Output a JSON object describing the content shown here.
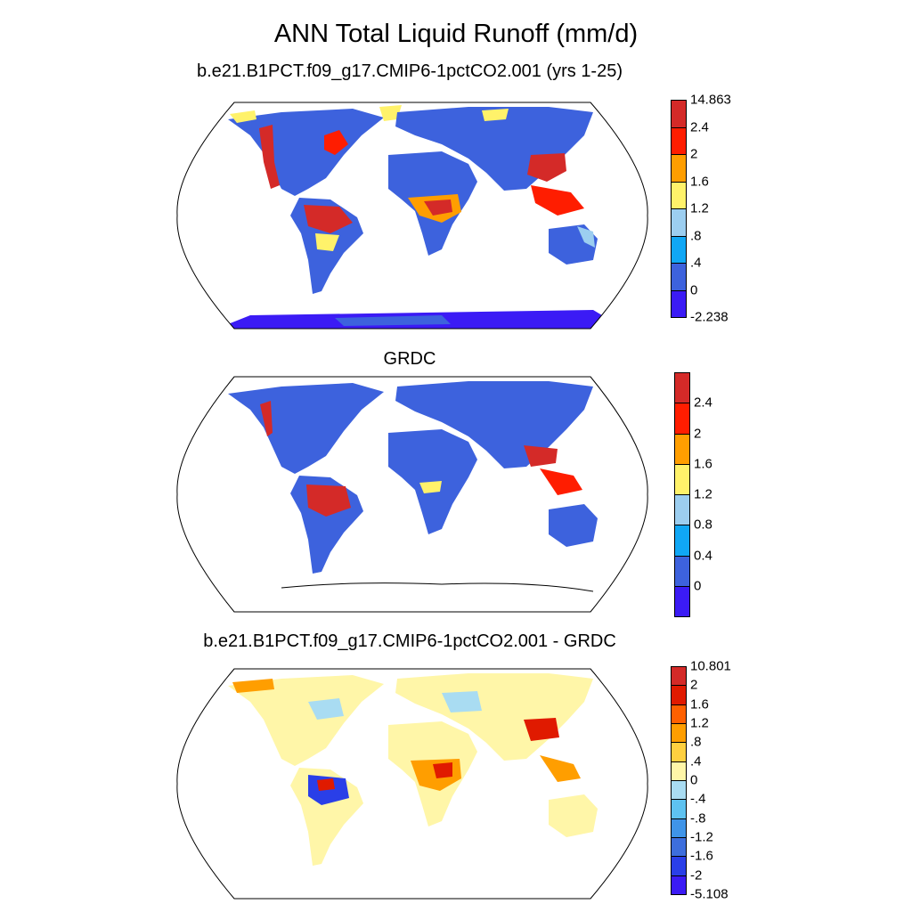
{
  "title": "ANN Total Liquid Runoff (mm/d)",
  "panels": [
    {
      "title": "b.e21.B1PCT.f09_g17.CMIP6-1pctCO2.001 (yrs 1-25)",
      "colorbar": {
        "colors": [
          "#3b1bf5",
          "#3d62dd",
          "#10a7f5",
          "#9ccef0",
          "#fff26a",
          "#ff9e00",
          "#ff1d00",
          "#d42a28"
        ],
        "labels": [
          "-2.238",
          "0",
          ".4",
          ".8",
          "1.2",
          "1.6",
          "2",
          "2.4",
          "14.863"
        ]
      }
    },
    {
      "title": "GRDC",
      "colorbar": {
        "colors": [
          "#3b1bf5",
          "#3d62dd",
          "#10a7f5",
          "#9ccef0",
          "#fff26a",
          "#ff9e00",
          "#ff1d00",
          "#d42a28"
        ],
        "labels": [
          "",
          "0",
          "0.4",
          "0.8",
          "1.2",
          "1.6",
          "2",
          "2.4",
          ""
        ]
      }
    },
    {
      "title": "b.e21.B1PCT.f09_g17.CMIP6-1pctCO2.001 - GRDC",
      "colorbar": {
        "colors": [
          "#3b1bf5",
          "#2a3fe8",
          "#3d6edd",
          "#3f94e8",
          "#5ec2f0",
          "#a9dcf2",
          "#fff6a8",
          "#ffd040",
          "#ff9e00",
          "#ff6000",
          "#e01a00",
          "#d42a28"
        ],
        "labels": [
          "-5.108",
          "-2",
          "-1.6",
          "-1.2",
          "-.8",
          "-.4",
          "0",
          ".4",
          ".8",
          "1.2",
          "1.6",
          "2",
          "10.801"
        ]
      }
    }
  ]
}
